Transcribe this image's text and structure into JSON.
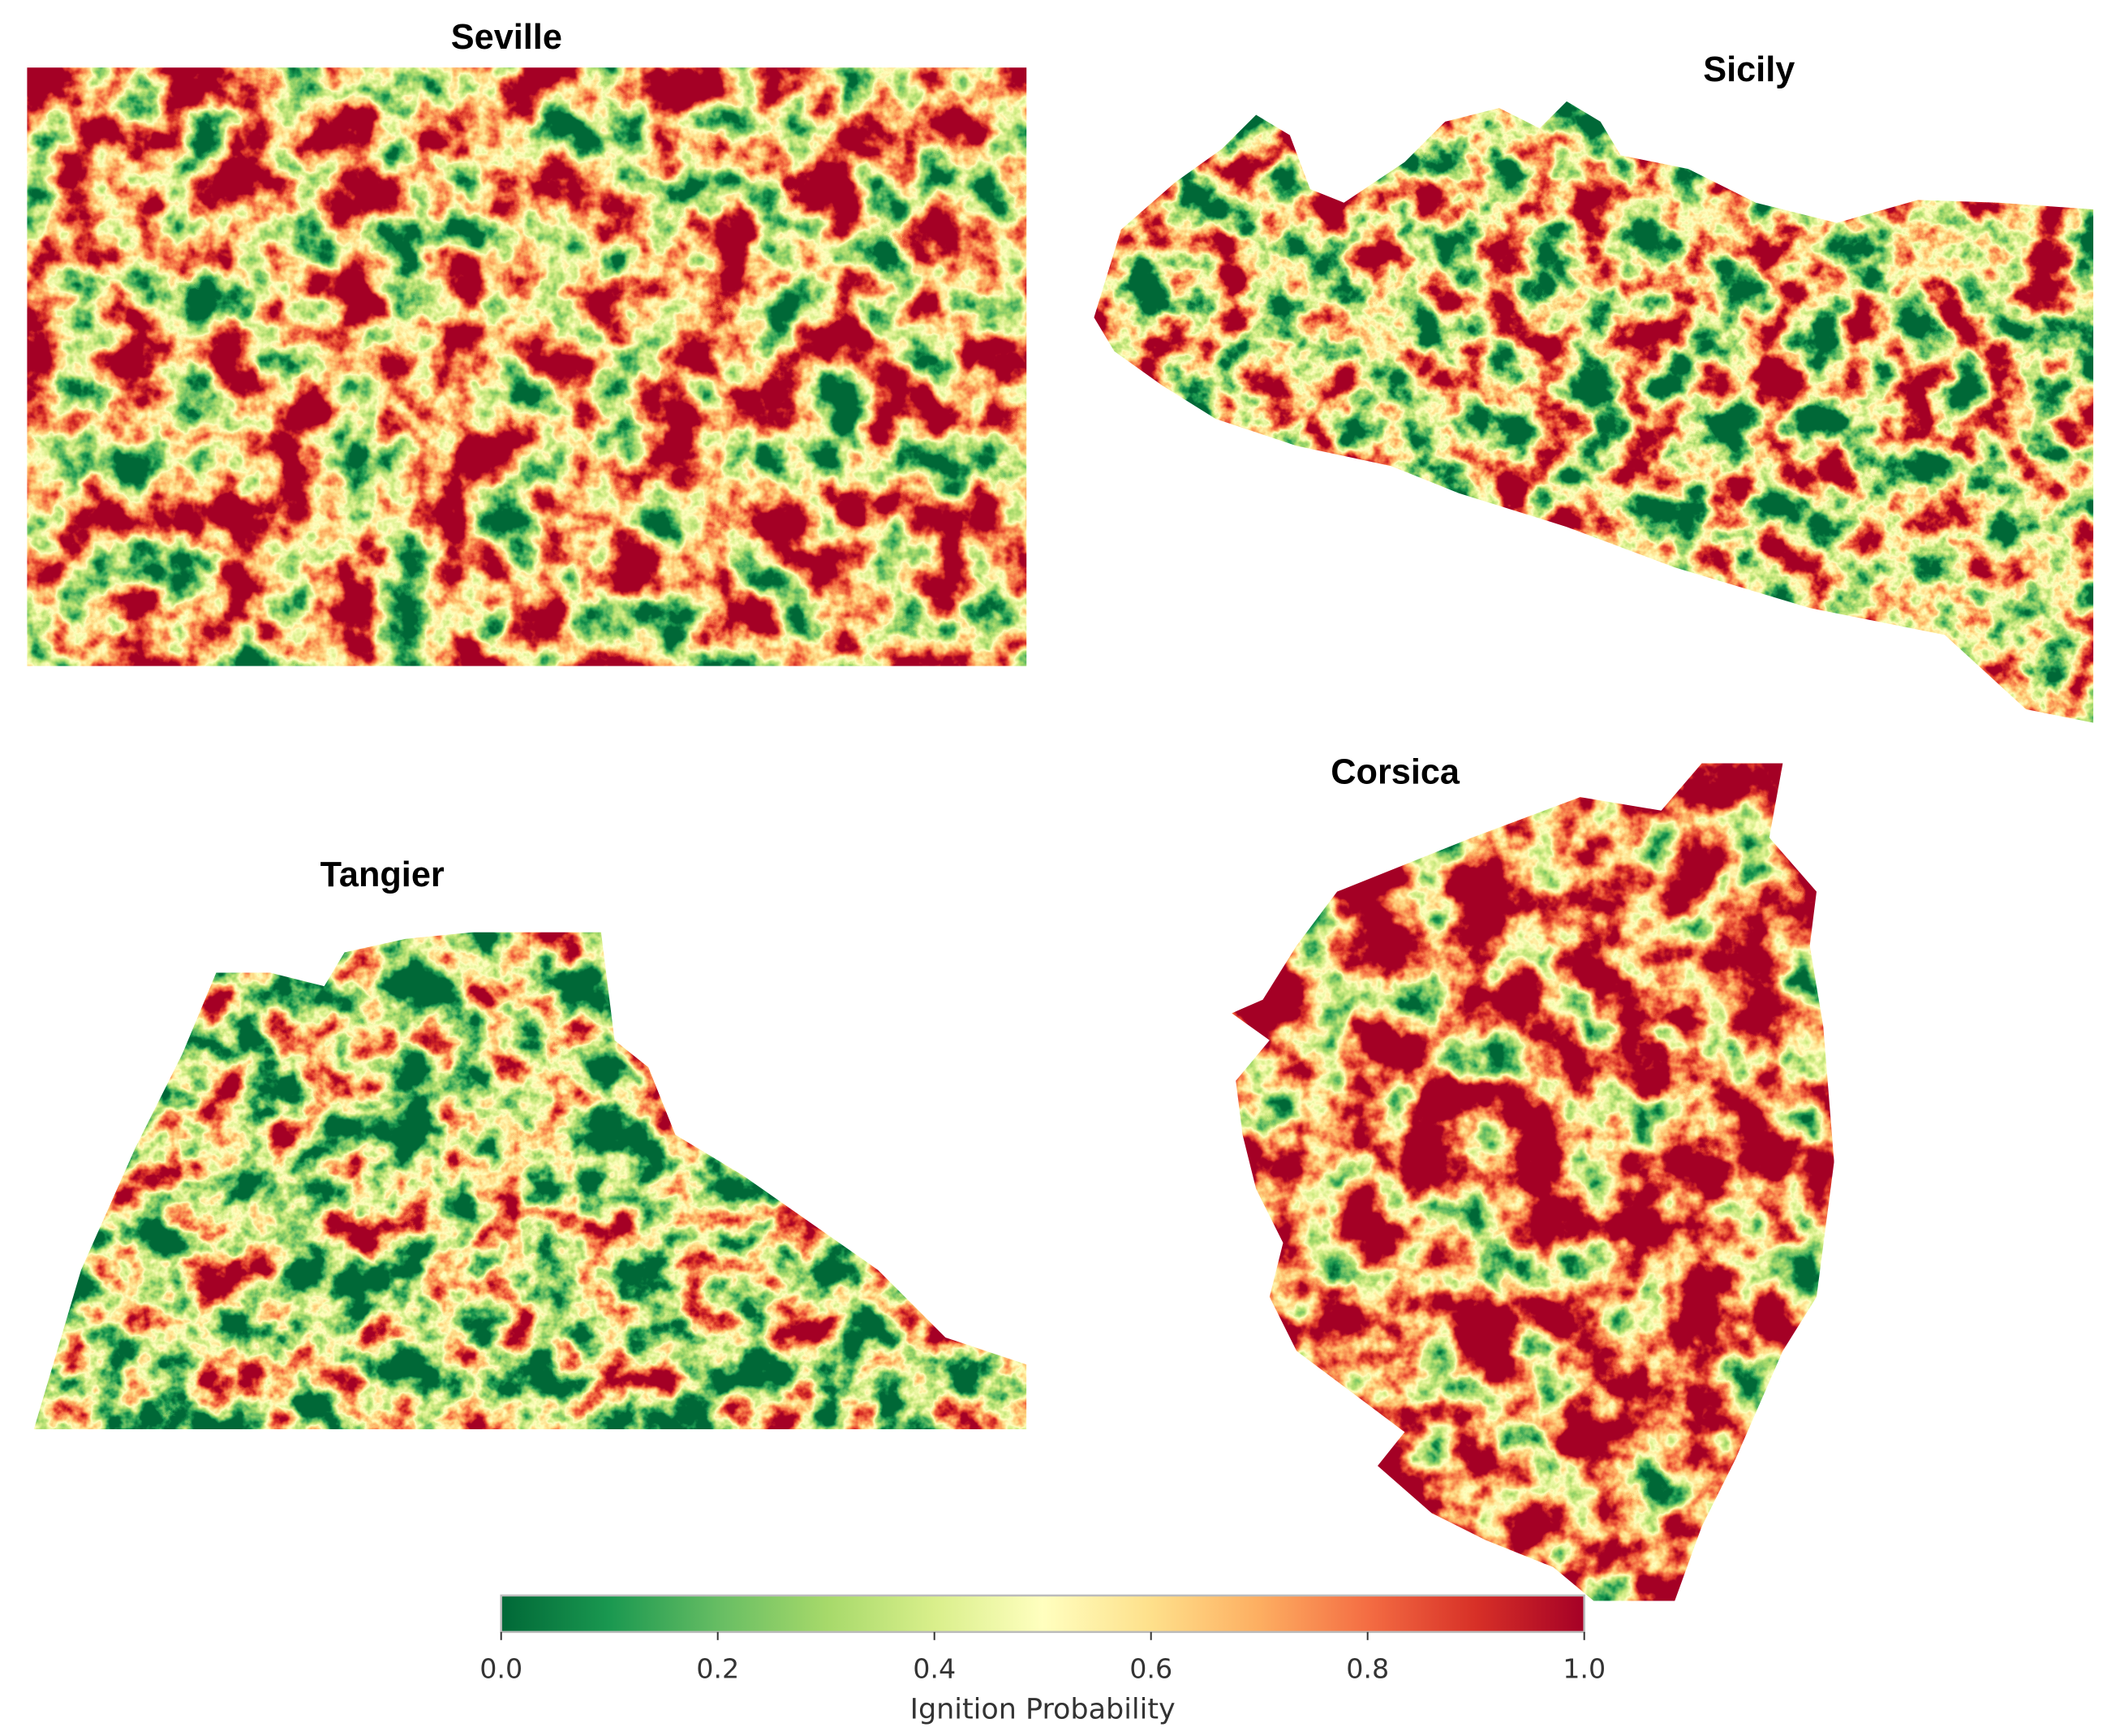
{
  "panels": [
    {
      "title": "Seville"
    },
    {
      "title": "Sicily"
    },
    {
      "title": "Tangier"
    },
    {
      "title": "Corsica"
    }
  ],
  "colorbar": {
    "label": "Ignition Probability",
    "lim": [
      0,
      1
    ],
    "ticks": [
      {
        "value": 0,
        "label": "0.0"
      },
      {
        "value": 0.2,
        "label": "0.2"
      },
      {
        "value": 0.4,
        "label": "0.4"
      },
      {
        "value": 0.6,
        "label": "0.6"
      },
      {
        "value": 0.8,
        "label": "0.8"
      },
      {
        "value": 1,
        "label": "1.0"
      }
    ],
    "colors": [
      "#006837",
      "#1a9850",
      "#66bd63",
      "#a6d96a",
      "#d9ef8b",
      "#ffffbf",
      "#fee08b",
      "#fdae61",
      "#f46d43",
      "#d73027",
      "#a50026"
    ]
  }
}
